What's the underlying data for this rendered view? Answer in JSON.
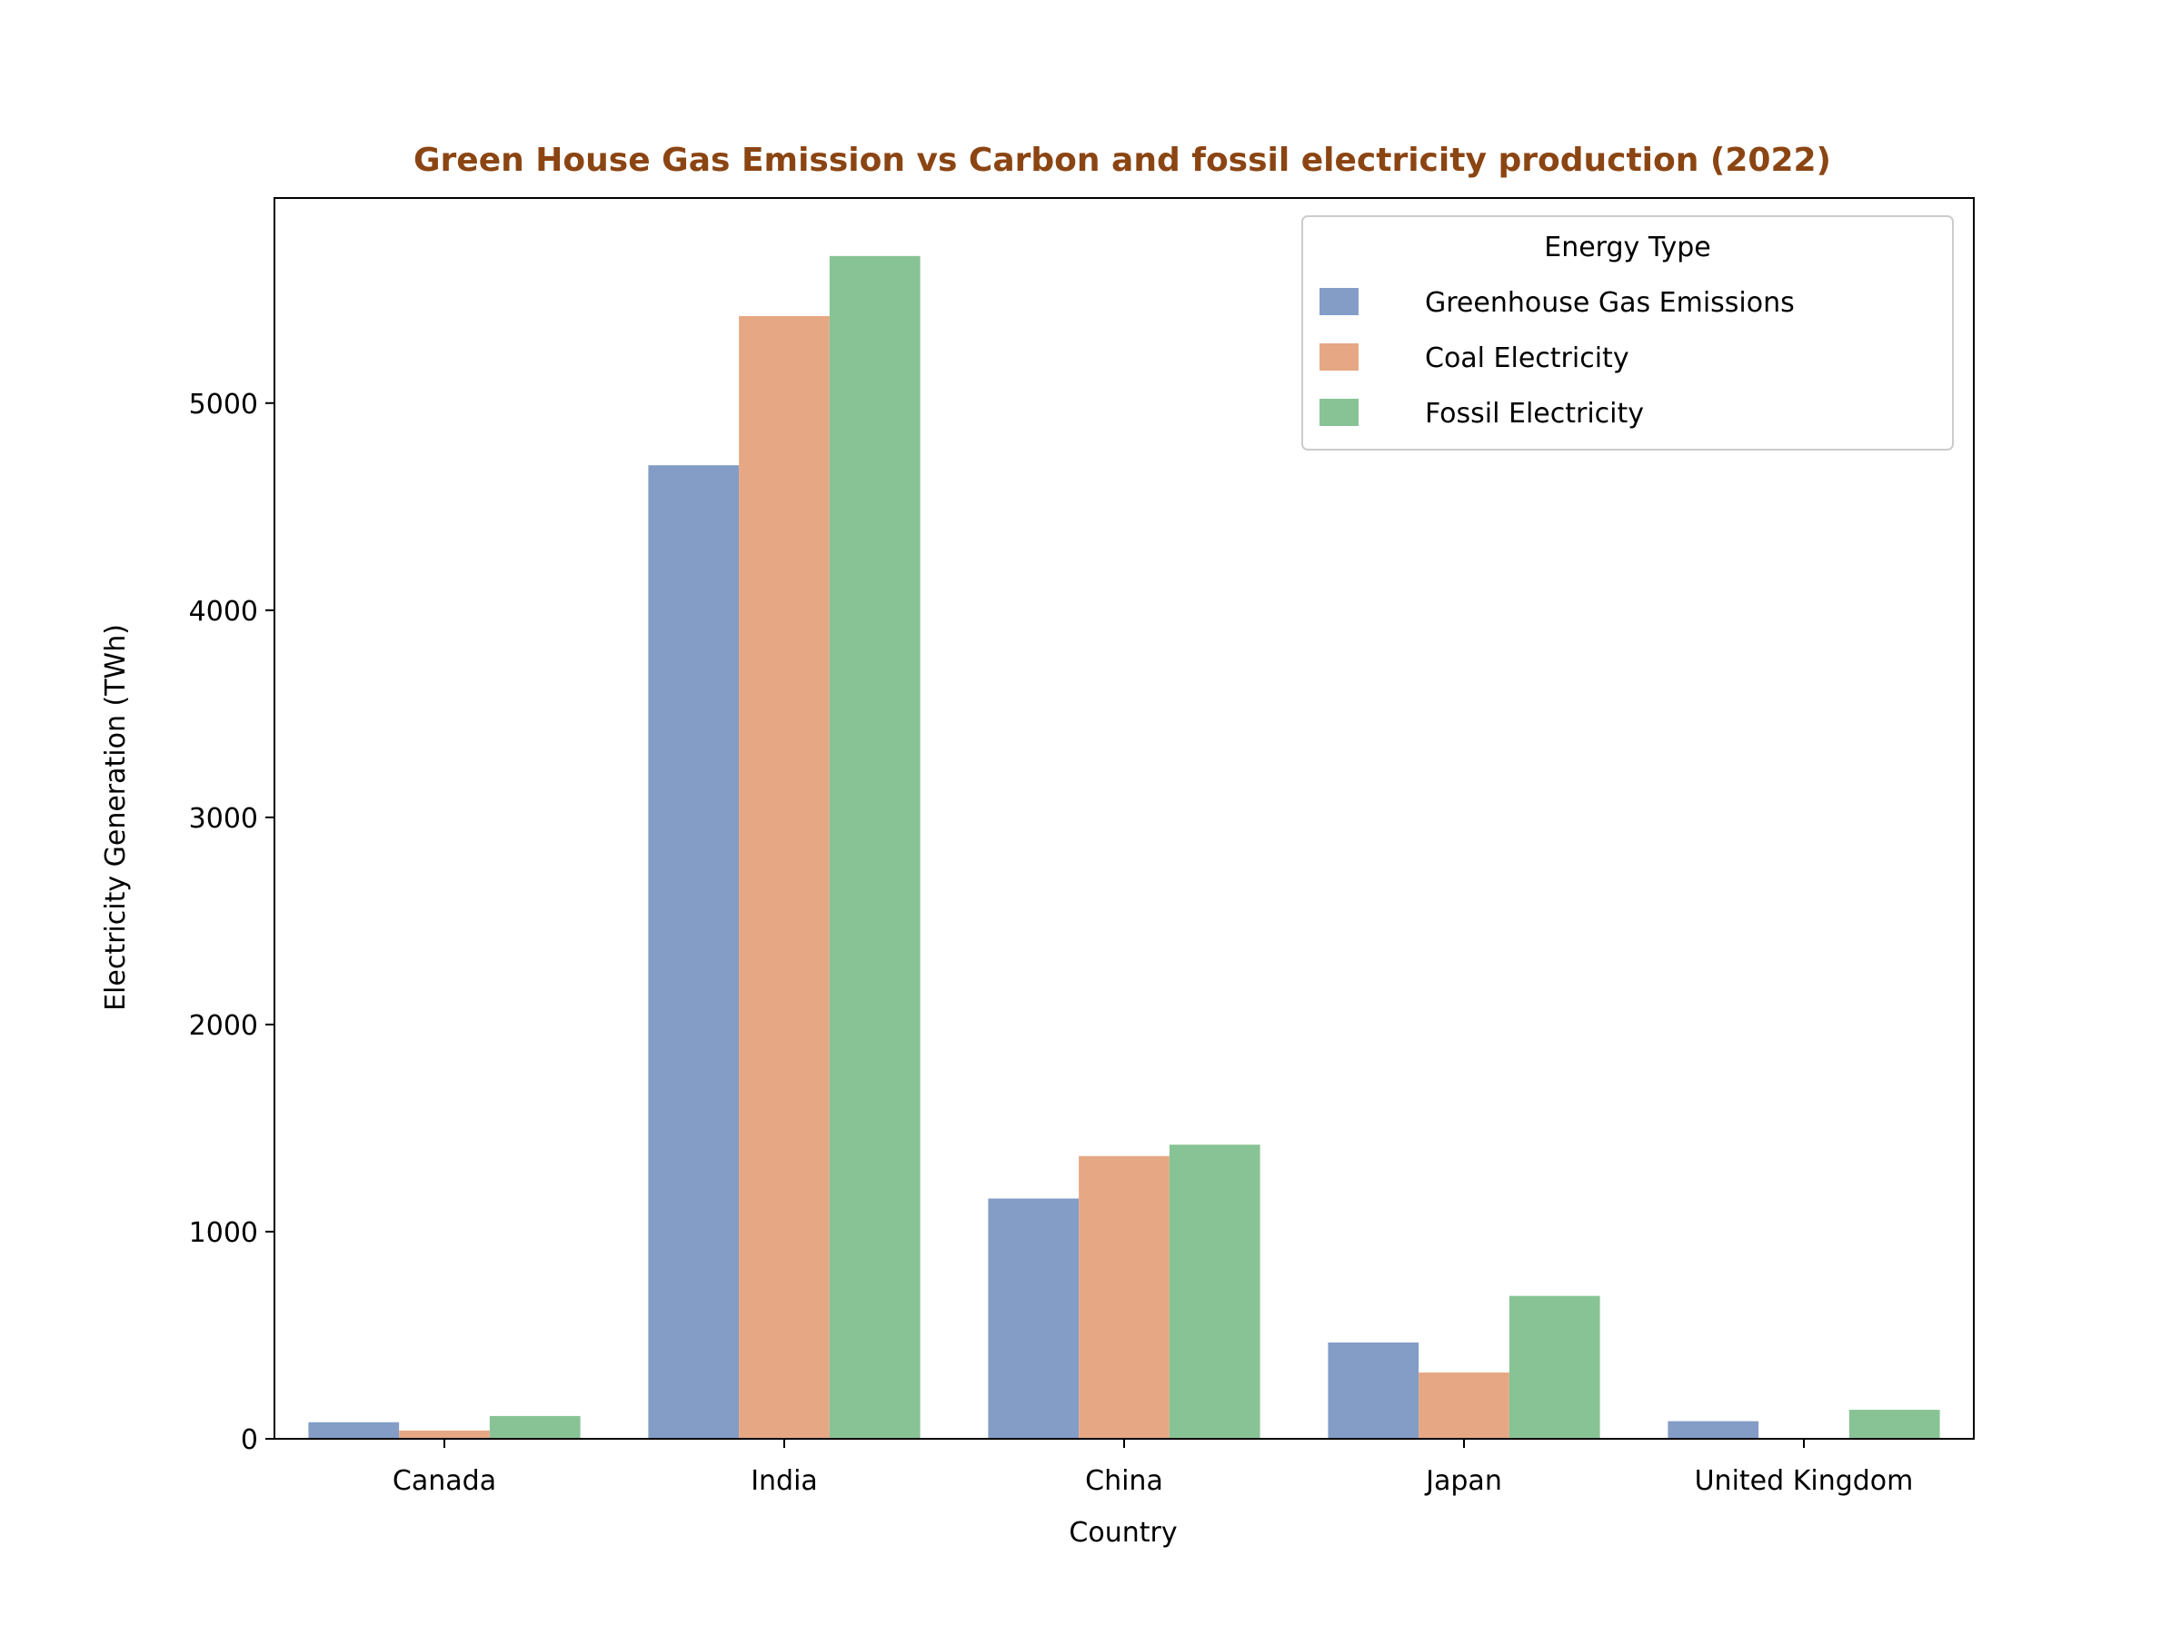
{
  "chart_data": {
    "type": "bar",
    "title": "Green House Gas Emission vs Carbon and fossil electricity production (2022)",
    "xlabel": "Country",
    "ylabel": "Electricity Generation (TWh)",
    "categories": [
      "Canada",
      "India",
      "China",
      "Japan",
      "United Kingdom"
    ],
    "series": [
      {
        "name": "Greenhouse Gas Emissions",
        "color": "#839dc7",
        "values": [
          80,
          4700,
          1160,
          465,
          85
        ]
      },
      {
        "name": "Coal Electricity",
        "color": "#e6a884",
        "values": [
          40,
          5420,
          1365,
          320,
          0
        ]
      },
      {
        "name": "Fossil Electricity",
        "color": "#88c395",
        "values": [
          110,
          5710,
          1420,
          690,
          140
        ]
      }
    ],
    "ylim": [
      0,
      5990
    ],
    "yticks": [
      0,
      1000,
      2000,
      3000,
      4000,
      5000
    ],
    "grid": false,
    "legend": {
      "title": "Energy Type",
      "position": "top-right"
    },
    "title_color": "#8b4513"
  }
}
